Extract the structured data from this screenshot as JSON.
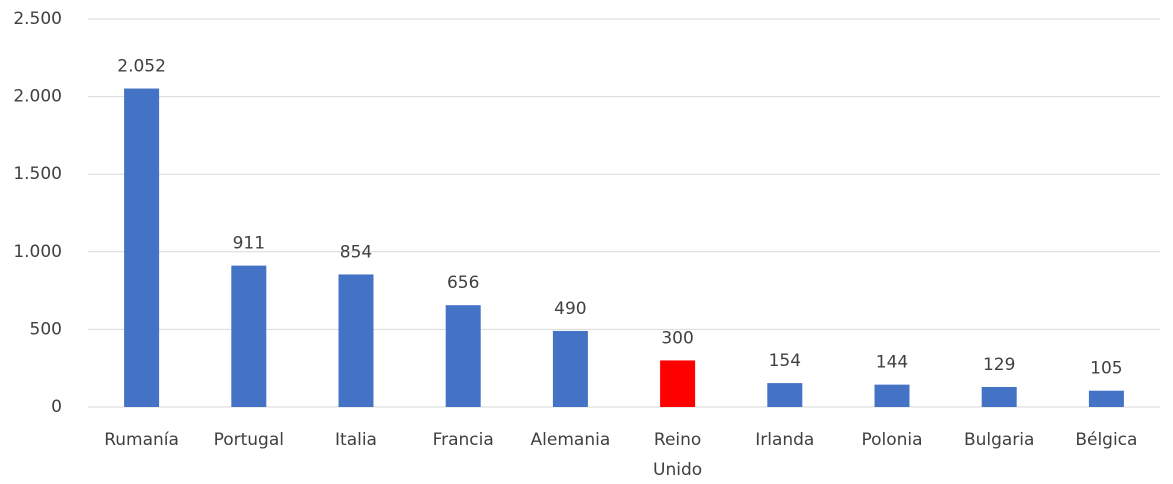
{
  "chart_data": {
    "type": "bar",
    "categories": [
      "Rumanía",
      "Portugal",
      "Italia",
      "Francia",
      "Alemania",
      "Reino Unido",
      "Irlanda",
      "Polonia",
      "Bulgaria",
      "Bélgica"
    ],
    "values": [
      2052,
      911,
      854,
      656,
      490,
      300,
      154,
      144,
      129,
      105
    ],
    "value_labels": [
      "2.052",
      "911",
      "854",
      "656",
      "490",
      "300",
      "154",
      "144",
      "129",
      "105"
    ],
    "colors": [
      "#4472c4",
      "#4472c4",
      "#4472c4",
      "#4472c4",
      "#4472c4",
      "#ff0000",
      "#4472c4",
      "#4472c4",
      "#4472c4",
      "#4472c4"
    ],
    "ylim": [
      0,
      2500
    ],
    "yticks": [
      0,
      500,
      {
        "value": 1000,
        "label": "1.000"
      },
      {
        "value": 1500,
        "label": "1.500"
      },
      {
        "value": 2000,
        "label": "2.000"
      },
      {
        "value": 2500,
        "label": "2.500"
      }
    ],
    "grid": true
  }
}
